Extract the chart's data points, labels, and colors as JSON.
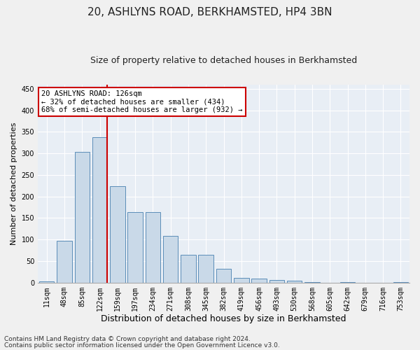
{
  "title1": "20, ASHLYNS ROAD, BERKHAMSTED, HP4 3BN",
  "title2": "Size of property relative to detached houses in Berkhamsted",
  "xlabel": "Distribution of detached houses by size in Berkhamsted",
  "ylabel": "Number of detached properties",
  "footer1": "Contains HM Land Registry data © Crown copyright and database right 2024.",
  "footer2": "Contains public sector information licensed under the Open Government Licence v3.0.",
  "bar_labels": [
    "11sqm",
    "48sqm",
    "85sqm",
    "122sqm",
    "159sqm",
    "197sqm",
    "234sqm",
    "271sqm",
    "308sqm",
    "345sqm",
    "382sqm",
    "419sqm",
    "456sqm",
    "493sqm",
    "530sqm",
    "568sqm",
    "605sqm",
    "642sqm",
    "679sqm",
    "716sqm",
    "753sqm"
  ],
  "bar_values": [
    3,
    97,
    303,
    338,
    224,
    164,
    164,
    108,
    65,
    65,
    32,
    11,
    10,
    7,
    4,
    1,
    0,
    1,
    0,
    0,
    1
  ],
  "bar_color": "#c9d9e8",
  "bar_edge_color": "#5b8db8",
  "vline_color": "#cc0000",
  "vline_x_idx": 3,
  "annotation_text": "20 ASHLYNS ROAD: 126sqm\n← 32% of detached houses are smaller (434)\n68% of semi-detached houses are larger (932) →",
  "annotation_box_color": "#ffffff",
  "annotation_box_edge": "#cc0000",
  "ylim": [
    0,
    460
  ],
  "yticks": [
    0,
    50,
    100,
    150,
    200,
    250,
    300,
    350,
    400,
    450
  ],
  "bg_color": "#e8eef5",
  "fig_bg_color": "#f0f0f0",
  "grid_color": "#ffffff",
  "title1_fontsize": 11,
  "title2_fontsize": 9,
  "xlabel_fontsize": 9,
  "ylabel_fontsize": 8,
  "tick_fontsize": 7,
  "footer_fontsize": 6.5,
  "annot_fontsize": 7.5
}
